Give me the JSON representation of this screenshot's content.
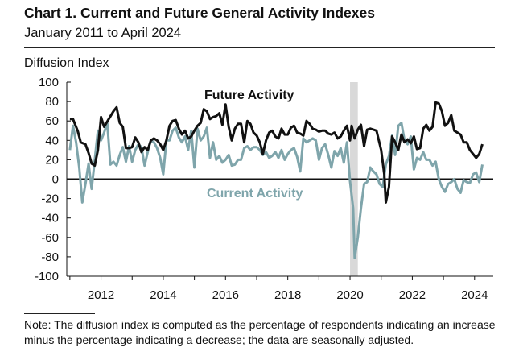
{
  "title": "Chart 1. Current and Future General Activity Indexes",
  "subtitle": "January 2011 to April 2024",
  "note": "Note: The diffusion index is computed as the percentage of respondents indicating an increase minus the percentage indicating a decrease; the data are seasonally adjusted.",
  "chart_data": {
    "type": "line",
    "ylabel": "Diffusion Index",
    "ylim": [
      -100,
      100
    ],
    "xlim": [
      2010.9,
      2024.6
    ],
    "yticks": [
      -100,
      -80,
      -60,
      -40,
      -20,
      0,
      20,
      40,
      60,
      80,
      100
    ],
    "xticks": [
      2012,
      2014,
      2016,
      2018,
      2020,
      2022,
      2024
    ],
    "grid": false,
    "legend": "inline labels",
    "shaded_period": [
      2020.0,
      2020.25
    ],
    "colors": {
      "future": "#111111",
      "current": "#7fa5ab",
      "shade": "#d9d9d9"
    },
    "series": [
      {
        "name": "Future Activity",
        "color": "#111111",
        "points": [
          [
            2011.0,
            62
          ],
          [
            2011.1,
            62
          ],
          [
            2011.25,
            50
          ],
          [
            2011.35,
            38
          ],
          [
            2011.5,
            36
          ],
          [
            2011.6,
            27
          ],
          [
            2011.7,
            16
          ],
          [
            2011.8,
            14
          ],
          [
            2011.9,
            30
          ],
          [
            2012.0,
            64
          ],
          [
            2012.1,
            54
          ],
          [
            2012.25,
            62
          ],
          [
            2012.4,
            70
          ],
          [
            2012.5,
            74
          ],
          [
            2012.6,
            58
          ],
          [
            2012.7,
            54
          ],
          [
            2012.8,
            32
          ],
          [
            2012.9,
            32
          ],
          [
            2013.0,
            33
          ],
          [
            2013.1,
            43
          ],
          [
            2013.2,
            38
          ],
          [
            2013.3,
            28
          ],
          [
            2013.4,
            33
          ],
          [
            2013.5,
            30
          ],
          [
            2013.6,
            40
          ],
          [
            2013.7,
            42
          ],
          [
            2013.8,
            40
          ],
          [
            2013.9,
            36
          ],
          [
            2014.0,
            30
          ],
          [
            2014.1,
            40
          ],
          [
            2014.2,
            55
          ],
          [
            2014.3,
            60
          ],
          [
            2014.4,
            61
          ],
          [
            2014.5,
            52
          ],
          [
            2014.6,
            46
          ],
          [
            2014.7,
            50
          ],
          [
            2014.8,
            42
          ],
          [
            2014.9,
            44
          ],
          [
            2015.0,
            50
          ],
          [
            2015.1,
            55
          ],
          [
            2015.2,
            58
          ],
          [
            2015.3,
            72
          ],
          [
            2015.4,
            70
          ],
          [
            2015.5,
            62
          ],
          [
            2015.6,
            64
          ],
          [
            2015.7,
            65
          ],
          [
            2015.8,
            68
          ],
          [
            2015.9,
            56
          ],
          [
            2016.0,
            77
          ],
          [
            2016.1,
            54
          ],
          [
            2016.2,
            40
          ],
          [
            2016.3,
            52
          ],
          [
            2016.4,
            57
          ],
          [
            2016.5,
            57
          ],
          [
            2016.6,
            38
          ],
          [
            2016.7,
            60
          ],
          [
            2016.8,
            57
          ],
          [
            2016.9,
            48
          ],
          [
            2017.0,
            45
          ],
          [
            2017.1,
            38
          ],
          [
            2017.2,
            26
          ],
          [
            2017.3,
            40
          ],
          [
            2017.4,
            48
          ],
          [
            2017.5,
            50
          ],
          [
            2017.6,
            44
          ],
          [
            2017.7,
            42
          ],
          [
            2017.8,
            52
          ],
          [
            2017.9,
            46
          ],
          [
            2018.0,
            46
          ],
          [
            2018.1,
            53
          ],
          [
            2018.2,
            55
          ],
          [
            2018.3,
            48
          ],
          [
            2018.4,
            47
          ],
          [
            2018.5,
            45
          ],
          [
            2018.6,
            60
          ],
          [
            2018.7,
            57
          ],
          [
            2018.8,
            52
          ],
          [
            2018.9,
            51
          ],
          [
            2019.0,
            49
          ],
          [
            2019.1,
            50
          ],
          [
            2019.2,
            50
          ],
          [
            2019.3,
            47
          ],
          [
            2019.4,
            46
          ],
          [
            2019.5,
            48
          ],
          [
            2019.6,
            42
          ],
          [
            2019.7,
            44
          ],
          [
            2019.8,
            50
          ],
          [
            2019.9,
            55
          ],
          [
            2020.0,
            40
          ],
          [
            2020.05,
            55
          ],
          [
            2020.15,
            42
          ],
          [
            2020.25,
            51
          ],
          [
            2020.35,
            56
          ],
          [
            2020.45,
            34
          ],
          [
            2020.55,
            51
          ],
          [
            2020.65,
            52
          ],
          [
            2020.75,
            51
          ],
          [
            2020.85,
            50
          ],
          [
            2021.0,
            30
          ],
          [
            2021.1,
            5
          ],
          [
            2021.15,
            -24
          ],
          [
            2021.25,
            -8
          ],
          [
            2021.35,
            44
          ],
          [
            2021.45,
            38
          ],
          [
            2021.55,
            30
          ],
          [
            2021.65,
            46
          ],
          [
            2021.75,
            38
          ],
          [
            2021.85,
            41
          ],
          [
            2021.95,
            37
          ],
          [
            2022.05,
            44
          ],
          [
            2022.15,
            31
          ],
          [
            2022.25,
            32
          ],
          [
            2022.35,
            52
          ],
          [
            2022.45,
            56
          ],
          [
            2022.55,
            50
          ],
          [
            2022.65,
            54
          ],
          [
            2022.75,
            79
          ],
          [
            2022.85,
            78
          ],
          [
            2022.95,
            70
          ],
          [
            2023.05,
            55
          ],
          [
            2023.15,
            58
          ],
          [
            2023.25,
            66
          ],
          [
            2023.35,
            50
          ],
          [
            2023.45,
            48
          ],
          [
            2023.55,
            46
          ],
          [
            2023.65,
            38
          ],
          [
            2023.75,
            38
          ],
          [
            2023.85,
            30
          ],
          [
            2023.95,
            26
          ],
          [
            2024.05,
            22
          ],
          [
            2024.15,
            26
          ],
          [
            2024.25,
            36
          ]
        ]
      },
      {
        "name": "Current Activity",
        "color": "#7fa5ab",
        "points": [
          [
            2011.0,
            30
          ],
          [
            2011.1,
            55
          ],
          [
            2011.2,
            38
          ],
          [
            2011.3,
            12
          ],
          [
            2011.4,
            -24
          ],
          [
            2011.5,
            -5
          ],
          [
            2011.6,
            16
          ],
          [
            2011.7,
            -10
          ],
          [
            2011.8,
            20
          ],
          [
            2011.9,
            50
          ],
          [
            2012.0,
            40
          ],
          [
            2012.1,
            48
          ],
          [
            2012.2,
            58
          ],
          [
            2012.3,
            15
          ],
          [
            2012.4,
            18
          ],
          [
            2012.5,
            14
          ],
          [
            2012.6,
            25
          ],
          [
            2012.7,
            33
          ],
          [
            2012.8,
            18
          ],
          [
            2012.9,
            34
          ],
          [
            2013.0,
            18
          ],
          [
            2013.1,
            30
          ],
          [
            2013.2,
            36
          ],
          [
            2013.3,
            33
          ],
          [
            2013.4,
            14
          ],
          [
            2013.5,
            28
          ],
          [
            2013.6,
            40
          ],
          [
            2013.7,
            38
          ],
          [
            2013.8,
            32
          ],
          [
            2013.9,
            22
          ],
          [
            2014.0,
            5
          ],
          [
            2014.1,
            40
          ],
          [
            2014.2,
            40
          ],
          [
            2014.3,
            50
          ],
          [
            2014.4,
            53
          ],
          [
            2014.5,
            43
          ],
          [
            2014.6,
            38
          ],
          [
            2014.7,
            44
          ],
          [
            2014.8,
            30
          ],
          [
            2014.9,
            50
          ],
          [
            2015.0,
            12
          ],
          [
            2015.1,
            52
          ],
          [
            2015.2,
            40
          ],
          [
            2015.3,
            44
          ],
          [
            2015.4,
            53
          ],
          [
            2015.5,
            22
          ],
          [
            2015.6,
            38
          ],
          [
            2015.7,
            20
          ],
          [
            2015.8,
            24
          ],
          [
            2015.9,
            17
          ],
          [
            2016.0,
            20
          ],
          [
            2016.1,
            25
          ],
          [
            2016.2,
            14
          ],
          [
            2016.3,
            15
          ],
          [
            2016.4,
            20
          ],
          [
            2016.5,
            20
          ],
          [
            2016.6,
            32
          ],
          [
            2016.7,
            34
          ],
          [
            2016.8,
            30
          ],
          [
            2016.9,
            33
          ],
          [
            2017.0,
            33
          ],
          [
            2017.1,
            30
          ],
          [
            2017.2,
            25
          ],
          [
            2017.3,
            28
          ],
          [
            2017.4,
            22
          ],
          [
            2017.5,
            24
          ],
          [
            2017.6,
            28
          ],
          [
            2017.7,
            22
          ],
          [
            2017.8,
            30
          ],
          [
            2017.9,
            20
          ],
          [
            2018.0,
            26
          ],
          [
            2018.1,
            30
          ],
          [
            2018.2,
            32
          ],
          [
            2018.3,
            23
          ],
          [
            2018.4,
            8
          ],
          [
            2018.5,
            42
          ],
          [
            2018.6,
            38
          ],
          [
            2018.7,
            40
          ],
          [
            2018.8,
            42
          ],
          [
            2018.9,
            40
          ],
          [
            2019.0,
            20
          ],
          [
            2019.1,
            32
          ],
          [
            2019.2,
            36
          ],
          [
            2019.3,
            25
          ],
          [
            2019.4,
            12
          ],
          [
            2019.5,
            29
          ],
          [
            2019.6,
            24
          ],
          [
            2019.7,
            32
          ],
          [
            2019.8,
            17
          ],
          [
            2019.9,
            38
          ],
          [
            2020.0,
            -2
          ],
          [
            2020.1,
            -30
          ],
          [
            2020.15,
            -81
          ],
          [
            2020.25,
            -60
          ],
          [
            2020.35,
            -30
          ],
          [
            2020.45,
            -5
          ],
          [
            2020.55,
            -3
          ],
          [
            2020.65,
            12
          ],
          [
            2020.75,
            8
          ],
          [
            2020.85,
            5
          ],
          [
            2020.95,
            -5
          ],
          [
            2021.05,
            -8
          ],
          [
            2021.15,
            15
          ],
          [
            2021.25,
            24
          ],
          [
            2021.35,
            45
          ],
          [
            2021.45,
            25
          ],
          [
            2021.55,
            55
          ],
          [
            2021.65,
            58
          ],
          [
            2021.75,
            40
          ],
          [
            2021.85,
            36
          ],
          [
            2021.95,
            44
          ],
          [
            2022.05,
            10
          ],
          [
            2022.15,
            22
          ],
          [
            2022.25,
            20
          ],
          [
            2022.35,
            28
          ],
          [
            2022.45,
            20
          ],
          [
            2022.55,
            20
          ],
          [
            2022.65,
            14
          ],
          [
            2022.75,
            18
          ],
          [
            2022.85,
            0
          ],
          [
            2022.95,
            -8
          ],
          [
            2023.05,
            -13
          ],
          [
            2023.15,
            -5
          ],
          [
            2023.25,
            -3
          ],
          [
            2023.35,
            0
          ],
          [
            2023.45,
            -10
          ],
          [
            2023.55,
            -14
          ],
          [
            2023.65,
            -1
          ],
          [
            2023.75,
            -3
          ],
          [
            2023.85,
            -4
          ],
          [
            2023.95,
            5
          ],
          [
            2024.05,
            7
          ],
          [
            2024.15,
            -3
          ],
          [
            2024.25,
            15
          ]
        ]
      }
    ]
  }
}
